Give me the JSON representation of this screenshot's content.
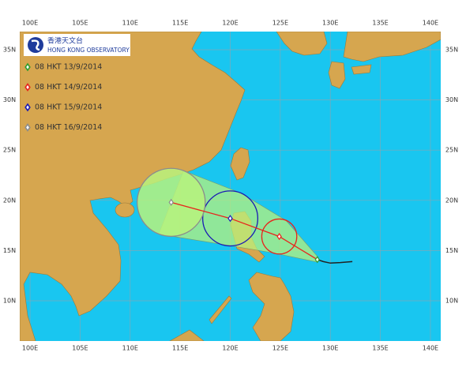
{
  "header": {
    "logo_cn": "香港天文台",
    "logo_en": "HONG KONG OBSERVATORY"
  },
  "map": {
    "lonlim": [
      98.97,
      141.03
    ],
    "latlim": [
      5.99,
      36.81
    ],
    "lonticks": [
      {
        "value": 100,
        "label": "100E"
      },
      {
        "value": 105,
        "label": "105E"
      },
      {
        "value": 110,
        "label": "110E"
      },
      {
        "value": 115,
        "label": "115E"
      },
      {
        "value": 120,
        "label": "120E"
      },
      {
        "value": 125,
        "label": "125E"
      },
      {
        "value": 130,
        "label": "130E"
      },
      {
        "value": 135,
        "label": "135E"
      },
      {
        "value": 140,
        "label": "140E"
      }
    ],
    "latticks": [
      {
        "value": 35,
        "label": "35N"
      },
      {
        "value": 30,
        "label": "30N"
      },
      {
        "value": 25,
        "label": "25N"
      },
      {
        "value": 20,
        "label": "20N"
      },
      {
        "value": 15,
        "label": "15N"
      },
      {
        "value": 10,
        "label": "10N"
      }
    ],
    "grid": true
  },
  "track": {
    "past": {
      "lon": [
        132.2,
        131.0,
        130.0,
        129.3,
        128.7
      ],
      "lat": [
        13.9,
        13.8,
        13.75,
        13.9,
        14.1
      ],
      "color": "#222222"
    },
    "forecast_color": "#e8241c",
    "cone_color": "#b8f27c",
    "forecast": [
      {
        "time": "08 HKT 13/9/2014",
        "color": "#2e9e2e",
        "lon": 128.7,
        "lat": 14.1,
        "radius": 0.25
      },
      {
        "time": "08 HKT 14/9/2014",
        "color": "#e8241c",
        "lon": 124.9,
        "lat": 16.4,
        "radius": 1.75
      },
      {
        "time": "08 HKT 15/9/2014",
        "color": "#1a1ab4",
        "lon": 120.0,
        "lat": 18.2,
        "radius": 2.75
      },
      {
        "time": "08 HKT 16/9/2014",
        "color": "#8c8c8c",
        "lon": 114.1,
        "lat": 19.8,
        "radius": 3.4
      }
    ]
  }
}
